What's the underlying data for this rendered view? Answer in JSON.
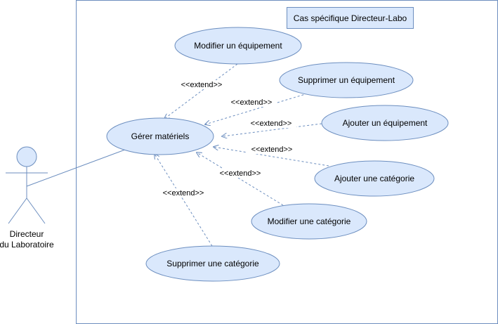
{
  "diagram": {
    "system_title": "Cas spécifique Directeur-Labo",
    "actor": {
      "name_line1": "Directeur",
      "name_line2": "du Laboratoire"
    },
    "use_cases": {
      "gerer": "Gérer matériels",
      "modifier_equipement": "Modifier un équipement",
      "supprimer_equipement": "Supprimer un équipement",
      "ajouter_equipement": "Ajouter un équipement",
      "ajouter_categorie": "Ajouter une catégorie",
      "modifier_categorie": "Modifier une catégorie",
      "supprimer_categorie": "Supprimer une catégorie"
    },
    "relations": {
      "extend_label": "<<extend>>"
    },
    "colors": {
      "ellipse_fill": "#dae8fc",
      "ellipse_stroke": "#6c8ebf",
      "actor_fill": "#dae8fc",
      "actor_stroke": "#6c8ebf",
      "boundary_stroke": "#6c8ebf",
      "title_box_fill": "#dae8fc",
      "title_box_stroke": "#6c8ebf"
    }
  }
}
